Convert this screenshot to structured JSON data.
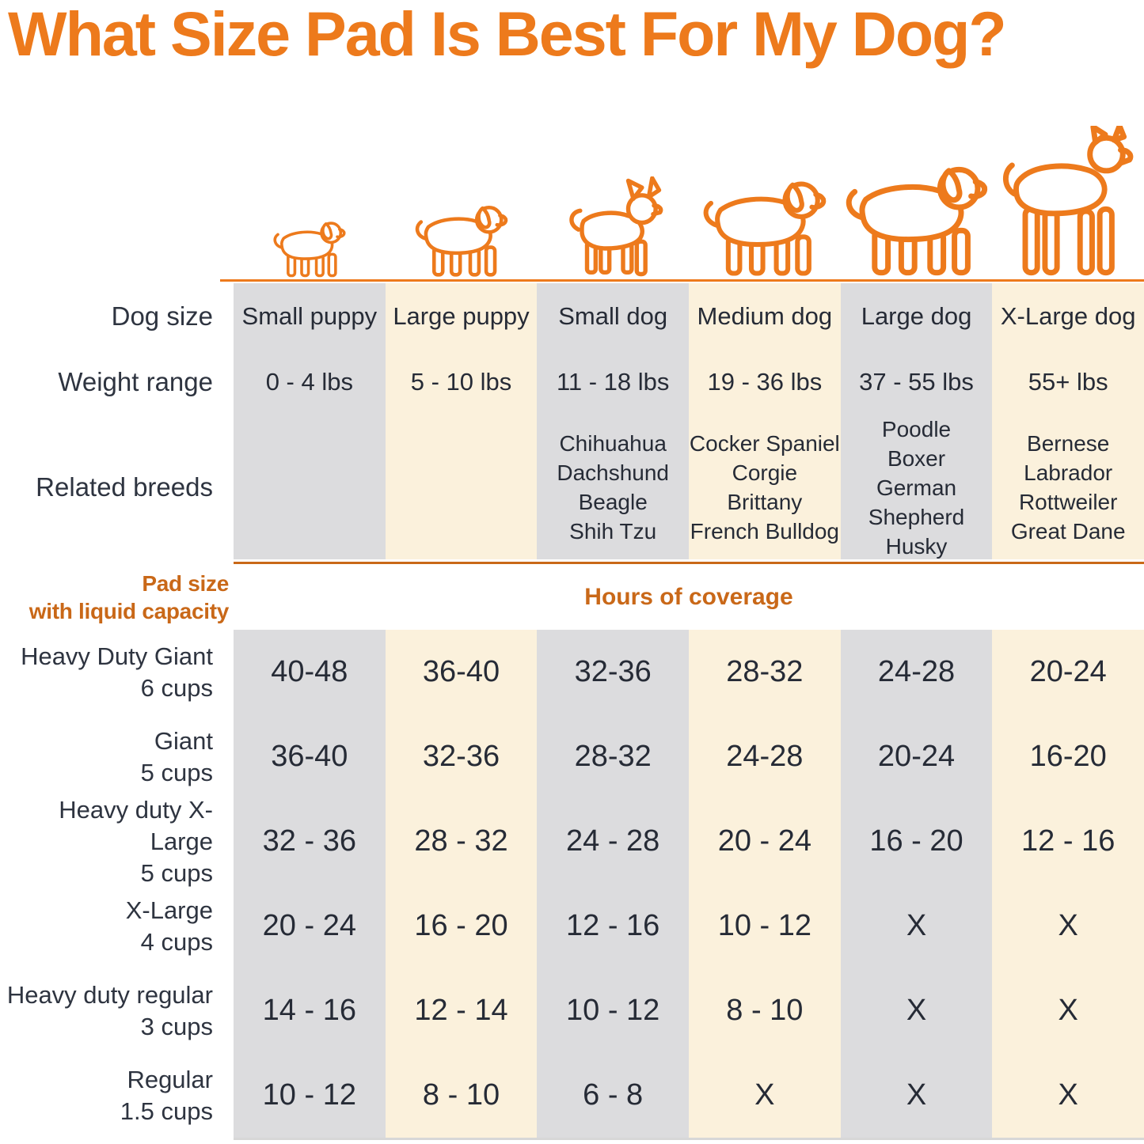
{
  "title": "What Size Pad Is Best For My Dog?",
  "colors": {
    "accent_orange": "#ed7a1c",
    "deep_orange": "#c96818",
    "text_dark": "#2e3440",
    "stripe_gray": "#dcdcde",
    "stripe_cream": "#fbf1dc"
  },
  "row_labels": {
    "dog_size": "Dog size",
    "weight_range": "Weight range",
    "related_breeds": "Related breeds"
  },
  "section": {
    "pad_size_line1": "Pad size",
    "pad_size_line2": "with liquid capacity",
    "hours_header": "Hours of coverage"
  },
  "columns": [
    {
      "icon": "small-puppy-icon",
      "dog_size": "Small puppy",
      "weight_range": "0 - 4 lbs",
      "breeds": [],
      "stripe": "gray"
    },
    {
      "icon": "large-puppy-icon",
      "dog_size": "Large puppy",
      "weight_range": "5 - 10 lbs",
      "breeds": [],
      "stripe": "cream"
    },
    {
      "icon": "small-dog-icon",
      "dog_size": "Small dog",
      "weight_range": "11 - 18 lbs",
      "breeds": [
        "Chihuahua",
        "Dachshund",
        "Beagle",
        "Shih Tzu"
      ],
      "stripe": "gray"
    },
    {
      "icon": "medium-dog-icon",
      "dog_size": "Medium dog",
      "weight_range": "19 - 36 lbs",
      "breeds": [
        "Cocker Spaniel",
        "Corgie",
        "Brittany",
        "French Bulldog"
      ],
      "stripe": "cream"
    },
    {
      "icon": "large-dog-icon",
      "dog_size": "Large dog",
      "weight_range": "37 - 55 lbs",
      "breeds": [
        "Poodle",
        "Boxer",
        "German Shepherd",
        "Husky"
      ],
      "stripe": "gray"
    },
    {
      "icon": "x-large-dog-icon",
      "dog_size": "X-Large dog",
      "weight_range": "55+ lbs",
      "breeds": [
        "Bernese",
        "Labrador",
        "Rottweiler",
        "Great Dane"
      ],
      "stripe": "cream"
    }
  ],
  "pad_rows": [
    {
      "name": "Heavy Duty Giant",
      "capacity": "6 cups",
      "values": [
        "40-48",
        "36-40",
        "32-36",
        "28-32",
        "24-28",
        "20-24"
      ]
    },
    {
      "name": "Giant",
      "capacity": "5 cups",
      "values": [
        "36-40",
        "32-36",
        "28-32",
        "24-28",
        "20-24",
        "16-20"
      ]
    },
    {
      "name": "Heavy duty X-Large",
      "capacity": "5 cups",
      "values": [
        "32 - 36",
        "28 - 32",
        "24 - 28",
        "20 - 24",
        "16 - 20",
        "12 - 16"
      ]
    },
    {
      "name": "X-Large",
      "capacity": "4 cups",
      "values": [
        "20 - 24",
        "16 - 20",
        "12 - 16",
        "10 - 12",
        "X",
        "X"
      ]
    },
    {
      "name": "Heavy duty regular",
      "capacity": "3 cups",
      "values": [
        "14 - 16",
        "12 - 14",
        "10 - 12",
        "8 - 10",
        "X",
        "X"
      ]
    },
    {
      "name": "Regular",
      "capacity": "1.5 cups",
      "values": [
        "10 - 12",
        "8 - 10",
        "6 - 8",
        "X",
        "X",
        "X"
      ]
    }
  ],
  "chart_data": {
    "type": "table",
    "title": "What Size Pad Is Best For My Dog?",
    "column_headers": [
      "Small puppy",
      "Large puppy",
      "Small dog",
      "Medium dog",
      "Large dog",
      "X-Large dog"
    ],
    "weight_ranges_lbs": [
      "0 - 4 lbs",
      "5 - 10 lbs",
      "11 - 18 lbs",
      "19 - 36 lbs",
      "37 - 55 lbs",
      "55+ lbs"
    ],
    "related_breeds": [
      [],
      [],
      [
        "Chihuahua",
        "Dachshund",
        "Beagle",
        "Shih Tzu"
      ],
      [
        "Cocker Spaniel",
        "Corgie",
        "Brittany",
        "French Bulldog"
      ],
      [
        "Poodle",
        "Boxer",
        "German Shepherd",
        "Husky"
      ],
      [
        "Bernese",
        "Labrador",
        "Rottweiler",
        "Great Dane"
      ]
    ],
    "value_unit": "Hours of coverage",
    "rows": [
      {
        "pad": "Heavy Duty Giant",
        "liquid_capacity": "6 cups",
        "hours": [
          "40-48",
          "36-40",
          "32-36",
          "28-32",
          "24-28",
          "20-24"
        ]
      },
      {
        "pad": "Giant",
        "liquid_capacity": "5 cups",
        "hours": [
          "36-40",
          "32-36",
          "28-32",
          "24-28",
          "20-24",
          "16-20"
        ]
      },
      {
        "pad": "Heavy duty X-Large",
        "liquid_capacity": "5 cups",
        "hours": [
          "32 - 36",
          "28 - 32",
          "24 - 28",
          "20 - 24",
          "16 - 20",
          "12 - 16"
        ]
      },
      {
        "pad": "X-Large",
        "liquid_capacity": "4 cups",
        "hours": [
          "20 - 24",
          "16 - 20",
          "12 - 16",
          "10 - 12",
          "X",
          "X"
        ]
      },
      {
        "pad": "Heavy duty regular",
        "liquid_capacity": "3 cups",
        "hours": [
          "14 - 16",
          "12 - 14",
          "10 - 12",
          "8 - 10",
          "X",
          "X"
        ]
      },
      {
        "pad": "Regular",
        "liquid_capacity": "1.5 cups",
        "hours": [
          "10 - 12",
          "8 - 10",
          "6 - 8",
          "X",
          "X",
          "X"
        ]
      }
    ]
  }
}
